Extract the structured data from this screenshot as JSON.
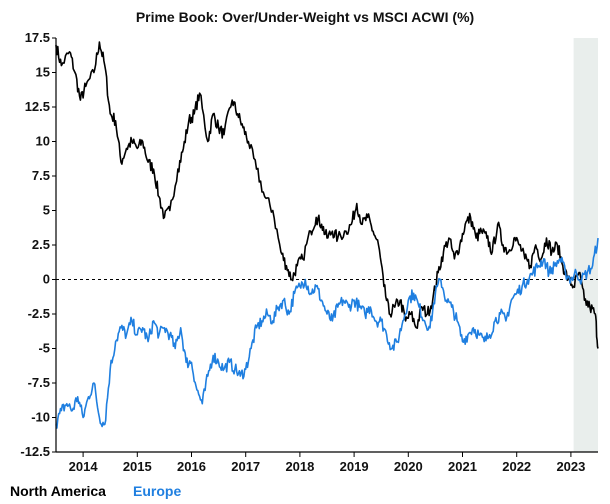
{
  "chart_data": {
    "type": "line",
    "title": "Prime Book: Over/Under-Weight vs MSCI ACWI (%)",
    "xlabel": "",
    "ylabel": "",
    "xlim": [
      2013.5,
      2023.5
    ],
    "ylim": [
      -12.5,
      17.5
    ],
    "yticks": [
      17.5,
      15,
      12.5,
      10,
      7.5,
      5,
      2.5,
      0,
      -2.5,
      -5,
      -7.5,
      -10,
      -12.5
    ],
    "ytick_labels": [
      "17.5",
      "15",
      "12.5",
      "10",
      "7.5",
      "5",
      "2.5",
      "0",
      "-2.5",
      "-5",
      "-7.5",
      "-10",
      "-12.5"
    ],
    "xticks": [
      2014,
      2015,
      2016,
      2017,
      2018,
      2019,
      2020,
      2021,
      2022,
      2023
    ],
    "xtick_labels": [
      "2014",
      "2015",
      "2016",
      "2017",
      "2018",
      "2019",
      "2020",
      "2021",
      "2022",
      "2023"
    ],
    "reference_line": 0,
    "shaded_region": [
      2023.05,
      2023.5
    ],
    "legend_position": "bottom-left",
    "series": [
      {
        "name": "North America",
        "color": "#000000",
        "x": [
          2013.5,
          2013.6,
          2013.75,
          2013.85,
          2013.95,
          2014.05,
          2014.2,
          2014.3,
          2014.4,
          2014.5,
          2014.6,
          2014.7,
          2014.8,
          2014.9,
          2015.0,
          2015.1,
          2015.2,
          2015.3,
          2015.4,
          2015.5,
          2015.6,
          2015.75,
          2015.85,
          2015.95,
          2016.05,
          2016.15,
          2016.3,
          2016.4,
          2016.5,
          2016.6,
          2016.75,
          2016.85,
          2016.95,
          2017.05,
          2017.2,
          2017.35,
          2017.5,
          2017.65,
          2017.75,
          2017.85,
          2017.95,
          2018.05,
          2018.2,
          2018.3,
          2018.4,
          2018.5,
          2018.6,
          2018.7,
          2018.85,
          2018.95,
          2019.05,
          2019.15,
          2019.25,
          2019.35,
          2019.45,
          2019.55,
          2019.65,
          2019.75,
          2019.85,
          2019.95,
          2020.05,
          2020.15,
          2020.25,
          2020.35,
          2020.45,
          2020.55,
          2020.65,
          2020.75,
          2020.85,
          2020.95,
          2021.05,
          2021.15,
          2021.25,
          2021.35,
          2021.45,
          2021.55,
          2021.65,
          2021.75,
          2021.85,
          2021.95,
          2022.05,
          2022.15,
          2022.25,
          2022.35,
          2022.45,
          2022.55,
          2022.65,
          2022.75,
          2022.85,
          2022.95,
          2023.05,
          2023.15,
          2023.25,
          2023.35,
          2023.45,
          2023.5
        ],
        "values": [
          17.0,
          15.5,
          16.5,
          15.0,
          13.0,
          14.0,
          15.0,
          17.2,
          15.5,
          12.0,
          11.5,
          8.5,
          9.5,
          10.0,
          9.5,
          10.0,
          8.5,
          8.0,
          6.0,
          4.5,
          5.0,
          8.0,
          9.5,
          11.5,
          12.0,
          13.5,
          10.0,
          12.0,
          11.0,
          10.5,
          13.0,
          12.0,
          11.0,
          10.0,
          8.0,
          6.0,
          5.0,
          2.0,
          1.0,
          0.0,
          1.0,
          1.5,
          3.5,
          4.5,
          4.0,
          3.0,
          3.5,
          3.0,
          3.5,
          4.0,
          5.5,
          4.0,
          4.5,
          3.5,
          2.5,
          -0.5,
          -2.5,
          -2.0,
          -1.5,
          -3.0,
          -2.5,
          -3.5,
          -2.0,
          -2.5,
          -1.5,
          0.5,
          2.0,
          3.0,
          1.5,
          2.5,
          4.0,
          4.5,
          3.0,
          3.5,
          3.0,
          2.0,
          4.0,
          2.5,
          2.0,
          3.0,
          2.5,
          1.5,
          1.0,
          2.5,
          1.5,
          3.0,
          2.0,
          2.5,
          1.0,
          0.0,
          -0.5,
          0.5,
          -1.5,
          -2.0,
          -2.5,
          -5.0
        ]
      },
      {
        "name": "Europe",
        "color": "#1f7fe0",
        "x": [
          2013.5,
          2013.6,
          2013.7,
          2013.8,
          2013.9,
          2014.0,
          2014.1,
          2014.2,
          2014.3,
          2014.4,
          2014.5,
          2014.6,
          2014.7,
          2014.8,
          2014.9,
          2015.0,
          2015.1,
          2015.2,
          2015.3,
          2015.4,
          2015.5,
          2015.6,
          2015.7,
          2015.8,
          2015.9,
          2016.0,
          2016.1,
          2016.2,
          2016.3,
          2016.4,
          2016.5,
          2016.6,
          2016.7,
          2016.8,
          2016.9,
          2017.0,
          2017.1,
          2017.2,
          2017.3,
          2017.4,
          2017.5,
          2017.6,
          2017.7,
          2017.8,
          2017.9,
          2018.0,
          2018.1,
          2018.2,
          2018.3,
          2018.4,
          2018.5,
          2018.6,
          2018.7,
          2018.8,
          2018.9,
          2019.0,
          2019.1,
          2019.2,
          2019.3,
          2019.4,
          2019.5,
          2019.6,
          2019.7,
          2019.8,
          2019.9,
          2020.0,
          2020.1,
          2020.2,
          2020.3,
          2020.4,
          2020.5,
          2020.6,
          2020.7,
          2020.8,
          2020.9,
          2021.0,
          2021.1,
          2021.2,
          2021.3,
          2021.4,
          2021.5,
          2021.6,
          2021.7,
          2021.8,
          2021.9,
          2022.0,
          2022.1,
          2022.2,
          2022.3,
          2022.4,
          2022.5,
          2022.6,
          2022.7,
          2022.8,
          2022.9,
          2023.0,
          2023.1,
          2023.2,
          2023.3,
          2023.4,
          2023.5
        ],
        "values": [
          -10.5,
          -9.5,
          -9.0,
          -9.5,
          -8.5,
          -10.0,
          -8.5,
          -7.5,
          -10.0,
          -10.5,
          -6.5,
          -4.5,
          -3.5,
          -4.0,
          -3.0,
          -4.0,
          -3.5,
          -4.5,
          -3.0,
          -4.0,
          -3.5,
          -4.0,
          -5.0,
          -3.5,
          -6.0,
          -6.0,
          -8.0,
          -9.0,
          -7.0,
          -5.5,
          -6.0,
          -6.5,
          -6.0,
          -6.5,
          -7.0,
          -6.5,
          -5.0,
          -3.5,
          -3.0,
          -2.5,
          -3.0,
          -2.0,
          -1.5,
          -2.5,
          -1.0,
          -0.5,
          0.0,
          -1.0,
          -0.5,
          -1.5,
          -2.5,
          -3.0,
          -2.0,
          -1.5,
          -2.0,
          -1.5,
          -2.0,
          -2.5,
          -2.0,
          -3.0,
          -3.0,
          -4.0,
          -5.0,
          -4.5,
          -3.0,
          -1.5,
          -1.0,
          -2.0,
          -3.0,
          -3.5,
          -1.0,
          0.0,
          -1.5,
          -2.0,
          -3.0,
          -4.5,
          -4.0,
          -3.5,
          -4.0,
          -4.5,
          -4.0,
          -3.0,
          -2.5,
          -3.0,
          -1.5,
          -1.0,
          -0.5,
          0.0,
          0.5,
          1.0,
          1.5,
          0.5,
          1.0,
          1.5,
          0.5,
          0.0,
          0.5,
          0.0,
          0.5,
          1.0,
          3.0
        ]
      }
    ]
  }
}
